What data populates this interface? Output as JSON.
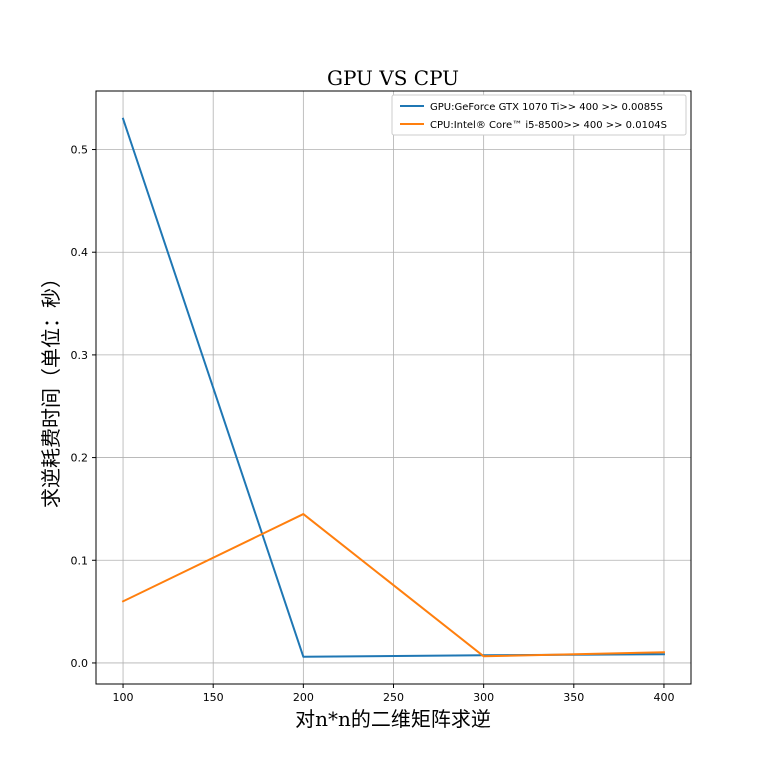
{
  "chart_data": {
    "type": "line",
    "title": "GPU VS CPU",
    "xlabel": "对n*n的二维矩阵求逆",
    "ylabel": "求逆耗费时间（单位：秒）",
    "x": [
      100,
      200,
      300,
      400
    ],
    "series": [
      {
        "name": "GPU:GeForce GTX 1070 Ti>> 400 >> 0.0085S",
        "color": "#1f77b4",
        "values": [
          0.53,
          0.006,
          0.0075,
          0.0085
        ]
      },
      {
        "name": "CPU:Intel® Core™ i5-8500>> 400 >> 0.0104S",
        "color": "#ff7f0e",
        "values": [
          0.06,
          0.145,
          0.0065,
          0.0104
        ]
      }
    ],
    "xlim": [
      85,
      415
    ],
    "ylim": [
      -0.0205,
      0.557
    ],
    "xticks": [
      100,
      150,
      200,
      250,
      300,
      350,
      400
    ],
    "yticks": [
      0.0,
      0.1,
      0.2,
      0.3,
      0.4,
      0.5
    ],
    "ytick_labels": [
      "0.0",
      "0.1",
      "0.2",
      "0.3",
      "0.4",
      "0.5"
    ],
    "grid": true,
    "legend_position": "top-right"
  }
}
